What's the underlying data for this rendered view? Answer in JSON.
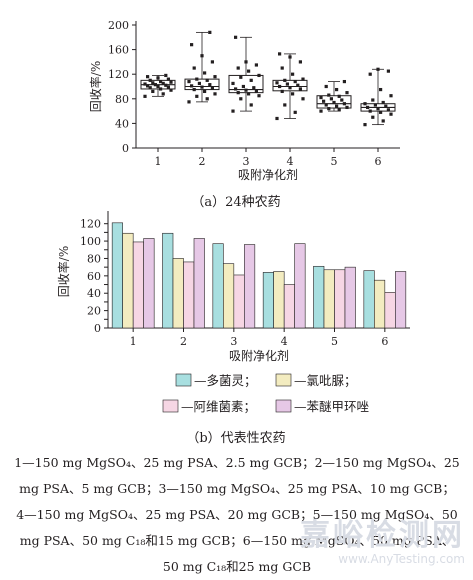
{
  "chart_data": [
    {
      "type": "box",
      "caption": "（a）24种农药",
      "ylabel": "回收率/%",
      "xlabel": "吸附净化剂",
      "ylim": [
        0,
        200
      ],
      "yticks": [
        0,
        40,
        80,
        120,
        160,
        200
      ],
      "grid": false,
      "categories": [
        "1",
        "2",
        "3",
        "4",
        "5",
        "6"
      ],
      "boxes": [
        {
          "category": "1",
          "q1": 96,
          "median": 103,
          "q3": 110,
          "min": 84,
          "max": 118,
          "points": [
            84,
            88,
            92,
            94,
            96,
            98,
            99,
            100,
            101,
            102,
            103,
            104,
            105,
            106,
            107,
            108,
            110,
            112,
            114,
            116,
            118
          ]
        },
        {
          "category": "2",
          "q1": 95,
          "median": 100,
          "q3": 112,
          "min": 75,
          "max": 188,
          "points": [
            75,
            80,
            84,
            88,
            92,
            95,
            97,
            99,
            101,
            103,
            105,
            108,
            110,
            112,
            116,
            122,
            130,
            140,
            150,
            168,
            188
          ]
        },
        {
          "category": "3",
          "q1": 90,
          "median": 95,
          "q3": 118,
          "min": 60,
          "max": 180,
          "points": [
            60,
            70,
            80,
            85,
            88,
            90,
            92,
            94,
            96,
            98,
            100,
            105,
            110,
            115,
            118,
            125,
            130,
            135,
            140,
            180
          ]
        },
        {
          "category": "4",
          "q1": 93,
          "median": 100,
          "q3": 110,
          "min": 48,
          "max": 153,
          "points": [
            48,
            58,
            70,
            80,
            88,
            92,
            96,
            98,
            100,
            102,
            104,
            106,
            108,
            110,
            112,
            120,
            130,
            140,
            148,
            153
          ]
        },
        {
          "category": "5",
          "q1": 65,
          "median": 72,
          "q3": 85,
          "min": 60,
          "max": 108,
          "points": [
            60,
            62,
            64,
            66,
            68,
            70,
            72,
            74,
            76,
            78,
            80,
            82,
            84,
            86,
            90,
            95,
            100,
            108
          ]
        },
        {
          "category": "6",
          "q1": 60,
          "median": 66,
          "q3": 72,
          "min": 38,
          "max": 128,
          "points": [
            38,
            44,
            50,
            55,
            58,
            60,
            62,
            64,
            66,
            68,
            70,
            72,
            74,
            78,
            85,
            95,
            120,
            125,
            128
          ]
        }
      ]
    },
    {
      "type": "bar",
      "caption": "（b）代表性农药",
      "ylabel": "回收率/%",
      "xlabel": "吸附净化剂",
      "ylim": [
        0,
        130
      ],
      "yticks": [
        0,
        10,
        20,
        30,
        40,
        50,
        60,
        70,
        80,
        90,
        100,
        110,
        120
      ],
      "grid": false,
      "categories": [
        "1",
        "2",
        "3",
        "4",
        "5",
        "6"
      ],
      "series": [
        {
          "name": "—多菌灵；",
          "color": "#a8dfe0",
          "values": [
            121,
            109,
            97,
            64,
            71,
            66
          ]
        },
        {
          "name": "—氯吡脲；",
          "color": "#f3ecc0",
          "values": [
            109,
            80,
            74,
            65,
            67,
            55
          ]
        },
        {
          "name": "—阿维菌素；",
          "color": "#f6d6e4",
          "values": [
            99,
            76,
            61,
            50,
            67,
            41
          ]
        },
        {
          "name": "—苯醚甲环唑",
          "color": "#e6c8e6",
          "values": [
            103,
            103,
            96,
            97,
            70,
            65
          ]
        }
      ],
      "legend_placement": "bottom"
    }
  ],
  "notes": {
    "line1": "1—150 mg MgSO₄、25 mg PSA、2.5 mg GCB；2—150 mg MgSO₄、25",
    "line2": "mg PSA、5 mg GCB；3—150 mg MgSO₄、25 mg PSA、10 mg GCB；",
    "line3": "4—150 mg MgSO₄、25 mg PSA、20 mg GCB；5—150 mg MgSO₄、50",
    "line4": "mg PSA、50 mg C₁₈和15 mg GCB；6—150 mg MgSO₄、50 mg PSA、",
    "line5": "50 mg C₁₈和25 mg GCB"
  },
  "watermark": {
    "text": "嘉峪检测网",
    "url": "www.AnyTesting.com"
  }
}
